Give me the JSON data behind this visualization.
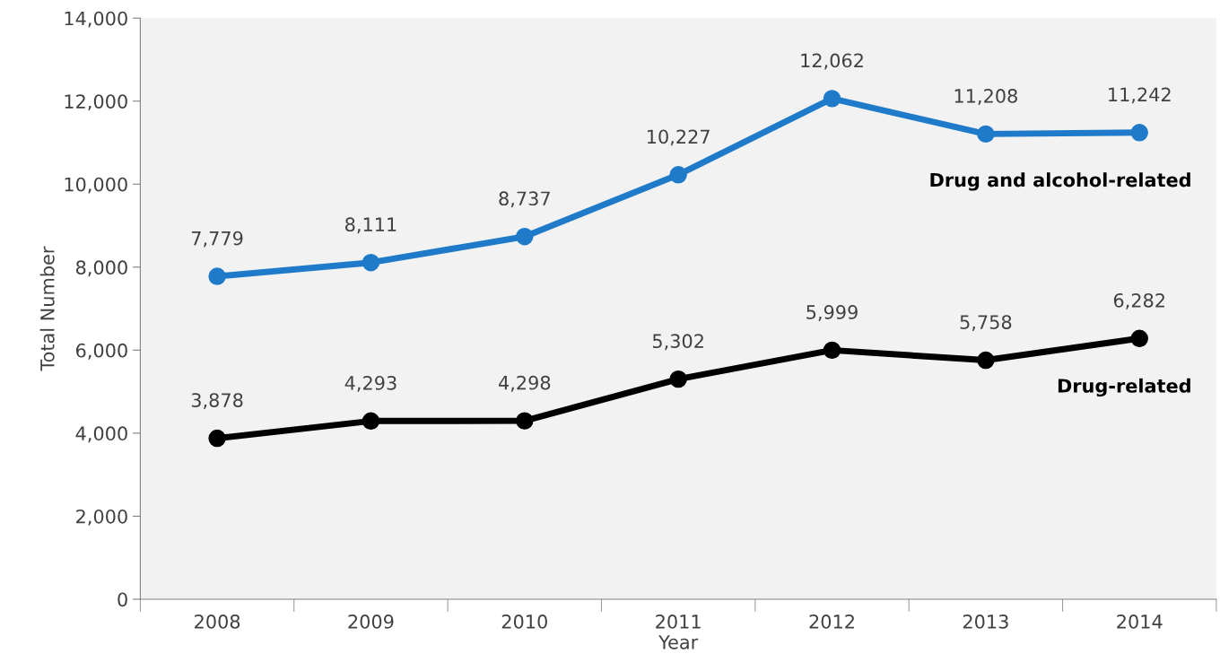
{
  "chart_data": {
    "type": "line",
    "xlabel": "Year",
    "ylabel": "Total Number",
    "categories": [
      "2008",
      "2009",
      "2010",
      "2011",
      "2012",
      "2013",
      "2014"
    ],
    "series": [
      {
        "name": "Drug and alcohol-related",
        "color": "#1f7bc9",
        "values": [
          7779,
          8111,
          8737,
          10227,
          12062,
          11208,
          11242
        ],
        "value_labels": [
          "7,779",
          "8,111",
          "8,737",
          "10,227",
          "12,062",
          "11,208",
          "11,242"
        ]
      },
      {
        "name": "Drug-related",
        "color": "#000000",
        "values": [
          3878,
          4293,
          4298,
          5302,
          5999,
          5758,
          6282
        ],
        "value_labels": [
          "3,878",
          "4,293",
          "4,298",
          "5,302",
          "5,999",
          "5,758",
          "6,282"
        ]
      }
    ],
    "ylim": [
      0,
      14000
    ],
    "yticks": [
      {
        "value": 0,
        "label": "0"
      },
      {
        "value": 2000,
        "label": "2,000"
      },
      {
        "value": 4000,
        "label": "4,000"
      },
      {
        "value": 6000,
        "label": "6,000"
      },
      {
        "value": 8000,
        "label": "8,000"
      },
      {
        "value": 10000,
        "label": "10,000"
      },
      {
        "value": 12000,
        "label": "12,000"
      },
      {
        "value": 14000,
        "label": "14,000"
      }
    ],
    "marker": "circle",
    "line_style": "solid",
    "grid": false,
    "legend": false
  }
}
